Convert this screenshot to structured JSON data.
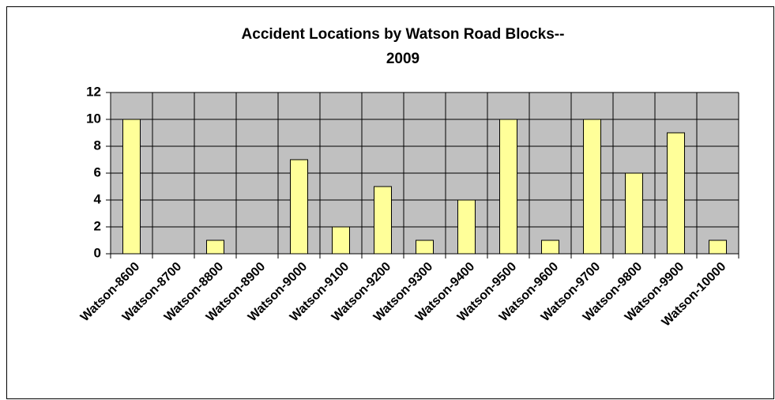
{
  "chart_data": {
    "type": "bar",
    "title": [
      "Accident Locations by Watson Road Blocks--",
      "2009"
    ],
    "categories": [
      "Watson-8600",
      "Watson-8700",
      "Watson-8800",
      "Watson-8900",
      "Watson-9000",
      "Watson-9100",
      "Watson-9200",
      "Watson-9300",
      "Watson-9400",
      "Watson-9500",
      "Watson-9600",
      "Watson-9700",
      "Watson-9800",
      "Watson-9900",
      "Watson-10000"
    ],
    "values": [
      10,
      0,
      1,
      0,
      7,
      2,
      5,
      1,
      4,
      10,
      1,
      10,
      6,
      9,
      1
    ],
    "color": "#ffff99",
    "ylim": [
      0,
      12
    ],
    "yticks": [
      0,
      2,
      4,
      6,
      8,
      10,
      12
    ],
    "grid": true
  }
}
